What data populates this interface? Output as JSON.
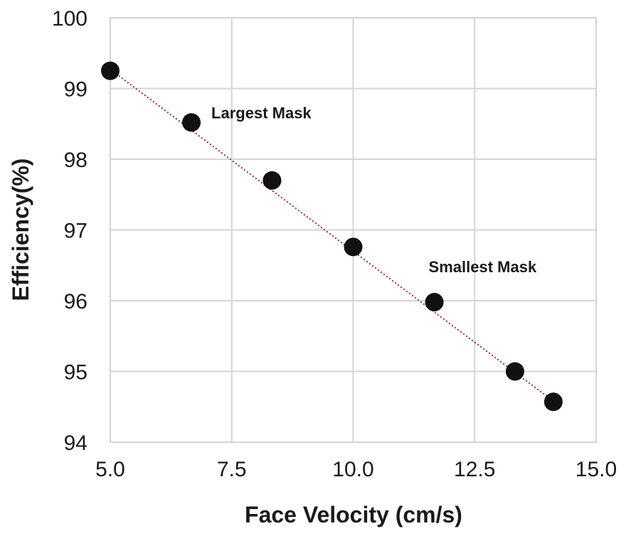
{
  "chart_data": {
    "type": "scatter",
    "title": "",
    "xlabel": "Face Velocity (cm/s)",
    "ylabel": "Efficiency(%)",
    "xlim": [
      5.0,
      15.0
    ],
    "ylim": [
      94,
      100
    ],
    "x_ticks": [
      "5.0",
      "7.5",
      "10.0",
      "12.5",
      "15.0"
    ],
    "y_ticks": [
      "94",
      "95",
      "96",
      "97",
      "98",
      "99",
      "100"
    ],
    "x_tick_values": [
      5.0,
      7.5,
      10.0,
      12.5,
      15.0
    ],
    "y_tick_values": [
      94,
      95,
      96,
      97,
      98,
      99,
      100
    ],
    "grid": true,
    "series": [
      {
        "x": [
          5.0,
          6.67,
          8.33,
          10.0,
          11.67,
          13.33,
          14.12
        ],
        "y": [
          99.25,
          98.52,
          97.7,
          96.76,
          95.98,
          95.0,
          94.57
        ],
        "color": "#111111"
      }
    ],
    "trendline": {
      "type": "linear",
      "color": "#9b2b2b",
      "from": [
        5.0,
        99.27
      ],
      "to": [
        14.12,
        94.58
      ]
    },
    "annotations": [
      {
        "text": "Largest Mask",
        "x": 6.67,
        "y": 98.52
      },
      {
        "text": "Smallest Mask",
        "x": 11.67,
        "y": 95.98
      }
    ]
  }
}
